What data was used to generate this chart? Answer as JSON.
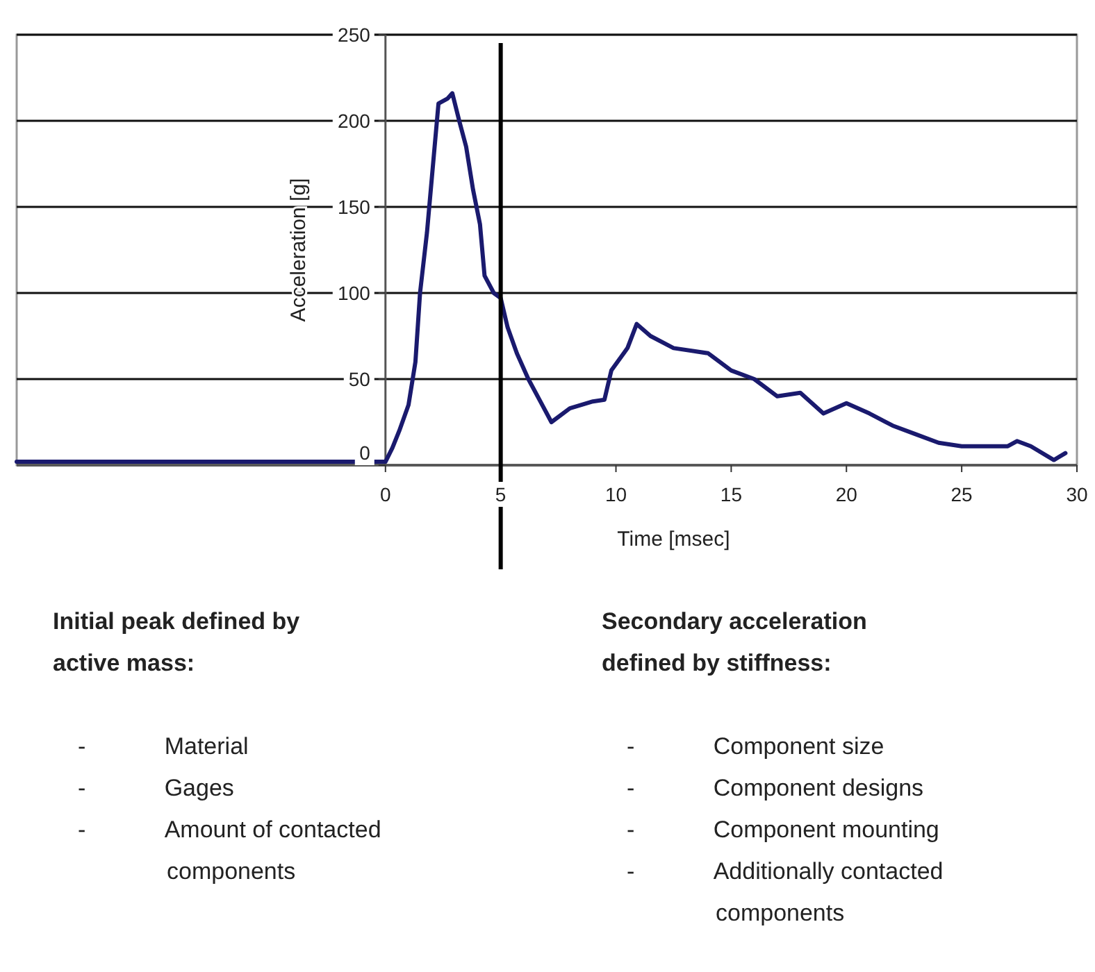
{
  "chart_data": {
    "type": "line",
    "xlabel": "Time [msec]",
    "ylabel": "Acceleration [g]",
    "xlim": [
      -16,
      30
    ],
    "xticks": [
      0,
      5,
      10,
      15,
      20,
      25,
      30
    ],
    "ylim": [
      0,
      250
    ],
    "yticks": [
      0,
      50,
      100,
      150,
      200,
      250
    ],
    "grid": "y",
    "marker": "none",
    "line_style": "solid",
    "series": [
      {
        "color": "#1a1a6e",
        "x": [
          -16,
          0,
          0.3,
          0.6,
          1,
          1.3,
          1.5,
          1.8,
          2.1,
          2.3,
          2.7,
          2.9,
          3.2,
          3.5,
          3.8,
          4.1,
          4.3,
          4.7,
          5,
          5.3,
          5.7,
          6.2,
          6.8,
          7.2,
          8,
          9,
          9.5,
          9.8,
          10.5,
          10.9,
          11.5,
          12.5,
          14,
          15,
          16,
          17,
          18,
          19,
          20,
          21,
          22,
          23,
          24,
          25,
          27,
          27.4,
          28,
          29,
          29.5
        ],
        "values": [
          2,
          2,
          10,
          20,
          35,
          60,
          100,
          135,
          180,
          210,
          213,
          216,
          200,
          185,
          160,
          140,
          110,
          100,
          97,
          80,
          65,
          50,
          35,
          25,
          33,
          37,
          38,
          55,
          68,
          82,
          75,
          68,
          65,
          55,
          50,
          40,
          42,
          30,
          36,
          30,
          23,
          18,
          13,
          11,
          11,
          14,
          11,
          3,
          7
        ]
      }
    ],
    "ref_lines": [
      {
        "axis": "x",
        "value": 5,
        "color": "#000000"
      }
    ],
    "annotations": [
      "Initial peak defined by active mass:",
      "- Material",
      "- Gages",
      "- Amount of contacted components",
      "Secondary acceleration defined by stiffness:",
      "- Component size",
      "- Component designs",
      "- Component mounting",
      "- Additionally contacted components"
    ]
  }
}
